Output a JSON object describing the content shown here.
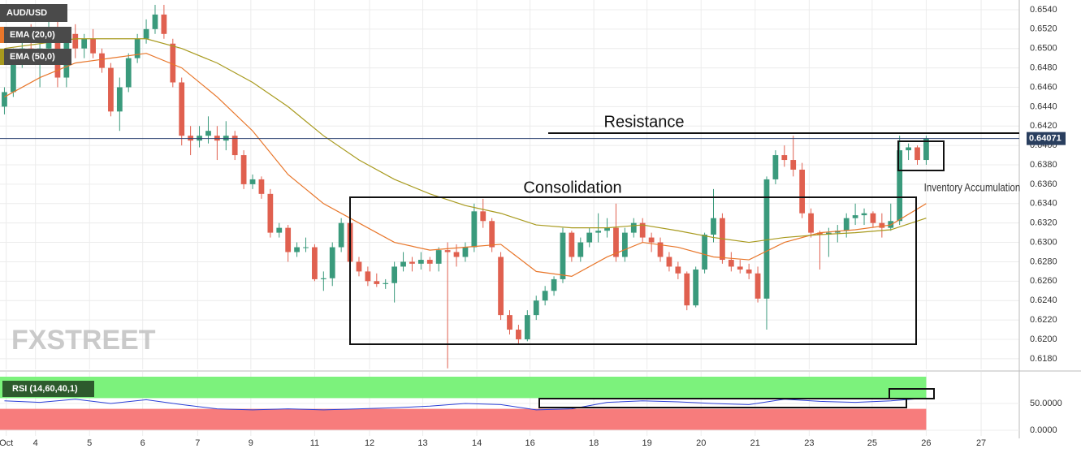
{
  "chart_data": {
    "type": "candlestick",
    "symbol": "AUD/USD",
    "watermark": "FXSTREET",
    "annotations": [
      "Resistance",
      "Consolidation",
      "Inventory Accumulation"
    ],
    "current_price": 0.64071,
    "up_color": "#3a9a7c",
    "down_color": "#e0604f",
    "xlim": [
      -0.5,
      114.5
    ],
    "xticks": [
      {
        "value": 0.2,
        "label": "Oct"
      },
      {
        "value": 3.5,
        "label": "4"
      },
      {
        "value": 9.6,
        "label": "5"
      },
      {
        "value": 15.6,
        "label": "6"
      },
      {
        "value": 21.8,
        "label": "7"
      },
      {
        "value": 27.8,
        "label": "9"
      },
      {
        "value": 35,
        "label": "11"
      },
      {
        "value": 41.2,
        "label": "12"
      },
      {
        "value": 47.2,
        "label": "13"
      },
      {
        "value": 53.3,
        "label": "14"
      },
      {
        "value": 59.3,
        "label": "16"
      },
      {
        "value": 66.5,
        "label": "18"
      },
      {
        "value": 72.5,
        "label": "19"
      },
      {
        "value": 78.6,
        "label": "20"
      },
      {
        "value": 84.7,
        "label": "21"
      },
      {
        "value": 90.8,
        "label": "23"
      },
      {
        "value": 97.9,
        "label": "25"
      },
      {
        "value": 104,
        "label": "26"
      },
      {
        "value": 110.2,
        "label": "27"
      }
    ],
    "ylim": [
      0.6169,
      0.655
    ],
    "yticks": [
      {
        "value": 0.618,
        "label": "0.6180"
      },
      {
        "value": 0.62,
        "label": "0.6200"
      },
      {
        "value": 0.622,
        "label": "0.6220"
      },
      {
        "value": 0.624,
        "label": "0.6240"
      },
      {
        "value": 0.626,
        "label": "0.6260"
      },
      {
        "value": 0.628,
        "label": "0.6280"
      },
      {
        "value": 0.63,
        "label": "0.6300"
      },
      {
        "value": 0.632,
        "label": "0.6320"
      },
      {
        "value": 0.634,
        "label": "0.6340"
      },
      {
        "value": 0.636,
        "label": "0.6360"
      },
      {
        "value": 0.638,
        "label": "0.6380"
      },
      {
        "value": 0.64,
        "label": "0.6400"
      },
      {
        "value": 0.642,
        "label": "0.6420"
      },
      {
        "value": 0.644,
        "label": "0.6440"
      },
      {
        "value": 0.646,
        "label": "0.6460"
      },
      {
        "value": 0.648,
        "label": "0.6480"
      },
      {
        "value": 0.65,
        "label": "0.6500"
      },
      {
        "value": 0.652,
        "label": "0.6520"
      },
      {
        "value": 0.654,
        "label": "0.6540"
      }
    ],
    "grid": true,
    "candles": [
      [
        0.644,
        0.646,
        0.6432,
        0.6455
      ],
      [
        0.6455,
        0.65,
        0.645,
        0.649
      ],
      [
        0.649,
        0.651,
        0.648,
        0.65
      ],
      [
        0.65,
        0.6525,
        0.6485,
        0.649
      ],
      [
        0.649,
        0.651,
        0.646,
        0.65
      ],
      [
        0.65,
        0.654,
        0.6495,
        0.652
      ],
      [
        0.652,
        0.653,
        0.646,
        0.647
      ],
      [
        0.647,
        0.652,
        0.646,
        0.6515
      ],
      [
        0.6515,
        0.6525,
        0.649,
        0.65
      ],
      [
        0.65,
        0.6515,
        0.649,
        0.651
      ],
      [
        0.651,
        0.652,
        0.649,
        0.6495
      ],
      [
        0.6495,
        0.65,
        0.6475,
        0.648
      ],
      [
        0.648,
        0.6485,
        0.643,
        0.6435
      ],
      [
        0.6435,
        0.647,
        0.6415,
        0.646
      ],
      [
        0.646,
        0.6495,
        0.6455,
        0.649
      ],
      [
        0.649,
        0.6515,
        0.6485,
        0.651
      ],
      [
        0.651,
        0.653,
        0.6505,
        0.652
      ],
      [
        0.652,
        0.6545,
        0.6515,
        0.6535
      ],
      [
        0.6535,
        0.6545,
        0.651,
        0.6515
      ],
      [
        0.6505,
        0.651,
        0.646,
        0.6465
      ],
      [
        0.6465,
        0.647,
        0.64,
        0.641
      ],
      [
        0.641,
        0.642,
        0.639,
        0.6405
      ],
      [
        0.6405,
        0.642,
        0.6398,
        0.641
      ],
      [
        0.641,
        0.643,
        0.6402,
        0.6415
      ],
      [
        0.641,
        0.642,
        0.6385,
        0.6405
      ],
      [
        0.6405,
        0.6425,
        0.6395,
        0.641
      ],
      [
        0.641,
        0.6415,
        0.6385,
        0.639
      ],
      [
        0.639,
        0.6395,
        0.6355,
        0.636
      ],
      [
        0.636,
        0.637,
        0.6355,
        0.6365
      ],
      [
        0.6365,
        0.6368,
        0.6345,
        0.635
      ],
      [
        0.635,
        0.6355,
        0.6305,
        0.631
      ],
      [
        0.631,
        0.632,
        0.6305,
        0.6315
      ],
      [
        0.6315,
        0.6318,
        0.628,
        0.629
      ],
      [
        0.629,
        0.63,
        0.6285,
        0.6295
      ],
      [
        0.6295,
        0.6305,
        0.629,
        0.6295
      ],
      [
        0.6295,
        0.6298,
        0.626,
        0.6262
      ],
      [
        0.6262,
        0.627,
        0.625,
        0.6263
      ],
      [
        0.6263,
        0.63,
        0.6255,
        0.6295
      ],
      [
        0.6295,
        0.6325,
        0.629,
        0.632
      ],
      [
        0.632,
        0.6325,
        0.6275,
        0.628
      ],
      [
        0.628,
        0.6285,
        0.6265,
        0.627
      ],
      [
        0.627,
        0.6275,
        0.6255,
        0.626
      ],
      [
        0.626,
        0.6268,
        0.6254,
        0.6257
      ],
      [
        0.6257,
        0.6262,
        0.6252,
        0.6258
      ],
      [
        0.6258,
        0.628,
        0.6238,
        0.6275
      ],
      [
        0.6275,
        0.629,
        0.627,
        0.628
      ],
      [
        0.628,
        0.6285,
        0.627,
        0.6278
      ],
      [
        0.6278,
        0.629,
        0.6272,
        0.6282
      ],
      [
        0.6282,
        0.6285,
        0.627,
        0.6278
      ],
      [
        0.6278,
        0.6295,
        0.627,
        0.6292
      ],
      [
        0.6292,
        0.63,
        0.617,
        0.629
      ],
      [
        0.629,
        0.6298,
        0.6275,
        0.6285
      ],
      [
        0.6285,
        0.63,
        0.628,
        0.6295
      ],
      [
        0.6295,
        0.634,
        0.629,
        0.6332
      ],
      [
        0.6332,
        0.6345,
        0.6315,
        0.6322
      ],
      [
        0.6322,
        0.6325,
        0.629,
        0.6295
      ],
      [
        0.6285,
        0.629,
        0.622,
        0.6225
      ],
      [
        0.6225,
        0.623,
        0.6205,
        0.621
      ],
      [
        0.621,
        0.6215,
        0.6195,
        0.62
      ],
      [
        0.62,
        0.623,
        0.6198,
        0.6225
      ],
      [
        0.6225,
        0.6245,
        0.622,
        0.624
      ],
      [
        0.624,
        0.6255,
        0.6235,
        0.625
      ],
      [
        0.625,
        0.6265,
        0.6245,
        0.6262
      ],
      [
        0.6262,
        0.6315,
        0.6258,
        0.631
      ],
      [
        0.631,
        0.6312,
        0.628,
        0.6285
      ],
      [
        0.6285,
        0.6305,
        0.628,
        0.63
      ],
      [
        0.63,
        0.6315,
        0.6295,
        0.631
      ],
      [
        0.631,
        0.633,
        0.63,
        0.6312
      ],
      [
        0.6312,
        0.6325,
        0.6305,
        0.6315
      ],
      [
        0.6315,
        0.634,
        0.628,
        0.6285
      ],
      [
        0.6285,
        0.6315,
        0.628,
        0.631
      ],
      [
        0.631,
        0.6325,
        0.6305,
        0.632
      ],
      [
        0.632,
        0.6325,
        0.63,
        0.6305
      ],
      [
        0.6305,
        0.631,
        0.629,
        0.63
      ],
      [
        0.63,
        0.6305,
        0.628,
        0.6285
      ],
      [
        0.6285,
        0.629,
        0.627,
        0.6275
      ],
      [
        0.6275,
        0.628,
        0.6262,
        0.6268
      ],
      [
        0.6268,
        0.627,
        0.623,
        0.6235
      ],
      [
        0.6235,
        0.6275,
        0.6233,
        0.6272
      ],
      [
        0.6272,
        0.631,
        0.6268,
        0.6308
      ],
      [
        0.6308,
        0.6355,
        0.63,
        0.6325
      ],
      [
        0.6325,
        0.633,
        0.6278,
        0.6282
      ],
      [
        0.6282,
        0.629,
        0.627,
        0.6275
      ],
      [
        0.6275,
        0.6282,
        0.6268,
        0.6272
      ],
      [
        0.6272,
        0.6278,
        0.6262,
        0.6268
      ],
      [
        0.6268,
        0.6275,
        0.6238,
        0.6242
      ],
      [
        0.6242,
        0.6368,
        0.621,
        0.6365
      ],
      [
        0.6365,
        0.6395,
        0.636,
        0.639
      ],
      [
        0.639,
        0.64,
        0.6378,
        0.6385
      ],
      [
        0.6385,
        0.641,
        0.6368,
        0.6375
      ],
      [
        0.6375,
        0.6382,
        0.6325,
        0.633
      ],
      [
        0.633,
        0.6335,
        0.6305,
        0.631
      ],
      [
        0.631,
        0.6312,
        0.6272,
        0.6308
      ],
      [
        0.6308,
        0.6315,
        0.6285,
        0.631
      ],
      [
        0.631,
        0.6318,
        0.63,
        0.6312
      ],
      [
        0.6312,
        0.633,
        0.6305,
        0.6325
      ],
      [
        0.6325,
        0.634,
        0.6318,
        0.6328
      ],
      [
        0.6328,
        0.6335,
        0.6318,
        0.633
      ],
      [
        0.633,
        0.6332,
        0.6315,
        0.632
      ],
      [
        0.632,
        0.633,
        0.6305,
        0.6315
      ],
      [
        0.6315,
        0.634,
        0.6312,
        0.6322
      ],
      [
        0.6322,
        0.641,
        0.6318,
        0.6395
      ],
      [
        0.6395,
        0.6402,
        0.6385,
        0.6398
      ],
      [
        0.6398,
        0.64,
        0.638,
        0.6385
      ],
      [
        0.6385,
        0.641,
        0.638,
        0.6407
      ]
    ],
    "overlay_x": [
      0,
      4,
      8,
      12,
      16,
      20,
      24,
      28,
      32,
      36,
      40,
      44,
      48,
      52,
      56,
      60,
      64,
      68,
      72,
      76,
      80,
      84,
      88,
      92,
      96,
      100,
      104
    ],
    "overlays": [
      {
        "name": "EMA (20,0)",
        "color": "#e8762a",
        "values": [
          0.645,
          0.647,
          0.6485,
          0.649,
          0.6495,
          0.648,
          0.645,
          0.6415,
          0.637,
          0.634,
          0.632,
          0.63,
          0.6292,
          0.6295,
          0.6298,
          0.627,
          0.6265,
          0.6285,
          0.63,
          0.6295,
          0.6285,
          0.6282,
          0.63,
          0.631,
          0.6313,
          0.6318,
          0.634
        ]
      },
      {
        "name": "EMA (50,0)",
        "color": "#a89a1e",
        "values": [
          0.65,
          0.6505,
          0.651,
          0.651,
          0.651,
          0.65,
          0.6485,
          0.6465,
          0.644,
          0.641,
          0.6385,
          0.6365,
          0.635,
          0.6338,
          0.633,
          0.6318,
          0.6315,
          0.6315,
          0.6318,
          0.6312,
          0.6305,
          0.63,
          0.6305,
          0.6308,
          0.631,
          0.6313,
          0.6325
        ]
      }
    ],
    "rsi": {
      "name": "RSI (14,60,40,1)",
      "color": "#2b3fd6",
      "upper": 60,
      "lower": 40,
      "ylim": [
        -10.6,
        109.1
      ],
      "yticks": [
        {
          "value": 0,
          "label": "0.0000"
        },
        {
          "value": 50,
          "label": "50.0000"
        }
      ],
      "values": [
        55,
        52,
        58,
        50,
        57,
        48,
        40,
        38,
        40,
        38,
        40,
        42,
        45,
        50,
        48,
        38,
        40,
        52,
        55,
        53,
        50,
        48,
        58,
        54,
        52,
        55,
        60
      ]
    }
  }
}
